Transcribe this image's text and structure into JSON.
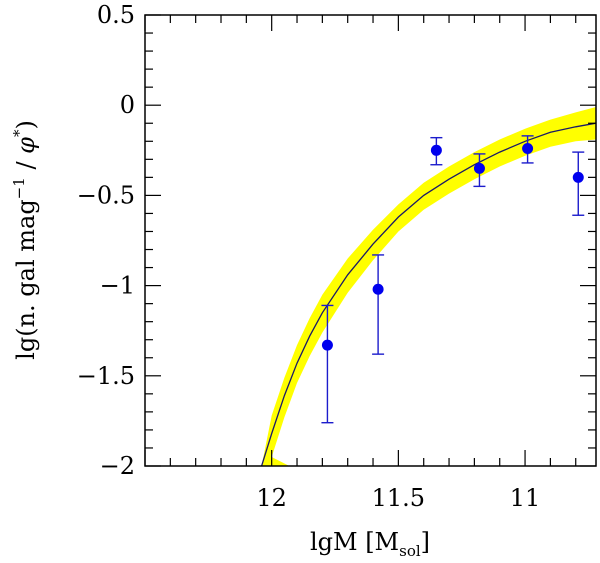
{
  "chart_data": {
    "type": "scatter",
    "title": "",
    "xlabel": "lgM [M",
    "xlabel_sub": "sol",
    "xlabel_close": "]",
    "ylabel_parts": {
      "prefix": "lg(n. gal mag",
      "exponent": "−1",
      "middle": " / ",
      "phi": "φ",
      "star": "*",
      "close": ")"
    },
    "xlim": [
      12.5,
      10.72
    ],
    "ylim": [
      -2,
      0.5
    ],
    "x_ticks": [
      {
        "value": 12,
        "label": "12"
      },
      {
        "value": 11.5,
        "label": "11.5"
      },
      {
        "value": 11,
        "label": "11"
      }
    ],
    "y_ticks": [
      {
        "value": 0.5,
        "label": "0.5"
      },
      {
        "value": 0,
        "label": "0"
      },
      {
        "value": -0.5,
        "label": "−0.5"
      },
      {
        "value": -1,
        "label": "−1"
      },
      {
        "value": -1.5,
        "label": "−1.5"
      },
      {
        "value": -2,
        "label": "−2"
      }
    ],
    "x_minor_step": 0.1,
    "y_minor_step": 0.1,
    "points": [
      {
        "x": 11.78,
        "y": -1.33,
        "yerr_low": 0.43,
        "yerr_high": 0.22
      },
      {
        "x": 11.58,
        "y": -1.02,
        "yerr_low": 0.36,
        "yerr_high": 0.19
      },
      {
        "x": 11.35,
        "y": -0.25,
        "yerr_low": 0.08,
        "yerr_high": 0.07
      },
      {
        "x": 11.18,
        "y": -0.35,
        "yerr_low": 0.1,
        "yerr_high": 0.08
      },
      {
        "x": 10.99,
        "y": -0.24,
        "yerr_low": 0.08,
        "yerr_high": 0.07
      },
      {
        "x": 10.79,
        "y": -0.4,
        "yerr_low": 0.21,
        "yerr_high": 0.14
      }
    ],
    "model_curve": {
      "x": [
        12.04,
        12.0,
        11.95,
        11.9,
        11.85,
        11.8,
        11.7,
        11.6,
        11.5,
        11.4,
        11.3,
        11.2,
        11.1,
        11.0,
        10.9,
        10.8,
        10.72
      ],
      "y": [
        -2.0,
        -1.82,
        -1.61,
        -1.43,
        -1.28,
        -1.15,
        -0.94,
        -0.77,
        -0.62,
        -0.5,
        -0.41,
        -0.33,
        -0.26,
        -0.2,
        -0.15,
        -0.12,
        -0.1
      ]
    },
    "band": {
      "upper": [
        -2.0,
        -1.72,
        -1.51,
        -1.33,
        -1.18,
        -1.05,
        -0.85,
        -0.69,
        -0.55,
        -0.43,
        -0.34,
        -0.26,
        -0.19,
        -0.13,
        -0.08,
        -0.04,
        -0.01
      ],
      "lower": [
        -2.0,
        -1.95,
        -1.73,
        -1.54,
        -1.39,
        -1.26,
        -1.04,
        -0.86,
        -0.7,
        -0.58,
        -0.49,
        -0.41,
        -0.34,
        -0.28,
        -0.23,
        -0.2,
        -0.19
      ],
      "lower_start_x": 11.93
    },
    "colors": {
      "points": "#0000ee",
      "errorbars": "#1c1ccc",
      "curve": "#1a1a66",
      "band": "#ffff00",
      "frame": "#000000"
    }
  }
}
